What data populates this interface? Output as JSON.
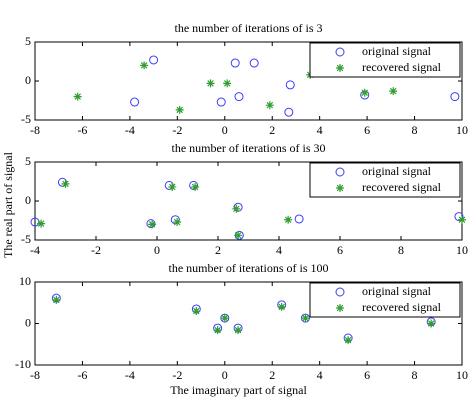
{
  "chart_data": [
    {
      "type": "scatter",
      "title": "the number of iterations of is 3",
      "xlim": [
        -8,
        10
      ],
      "xticks": [
        -8,
        -6,
        -4,
        -2,
        0,
        2,
        4,
        6,
        8,
        10
      ],
      "ylim": [
        -5,
        5
      ],
      "yticks": [
        -5,
        0,
        5
      ],
      "legend": "upper right",
      "series": [
        {
          "name": "original signal",
          "color": "#3b3bff",
          "marker": "circle",
          "x": [
            -3.8,
            -3.0,
            -0.15,
            0.44,
            0.6,
            1.24,
            2.7,
            2.76,
            5.9,
            9.7
          ],
          "values": [
            -2.7,
            2.7,
            -2.7,
            2.3,
            -2.0,
            2.3,
            -4.0,
            -0.5,
            -1.8,
            -2.0
          ]
        },
        {
          "name": "recovered signal",
          "color": "#2e9e2e",
          "marker": "star",
          "x": [
            -6.2,
            -3.4,
            -1.9,
            -0.6,
            0.1,
            1.9,
            3.6,
            5.9,
            7.1
          ],
          "values": [
            -2.0,
            2.0,
            -3.7,
            -0.3,
            -0.3,
            -3.1,
            0.8,
            -1.5,
            -1.3
          ]
        }
      ]
    },
    {
      "type": "scatter",
      "title": "the number of iterations of is 30",
      "xlim": [
        -4,
        10
      ],
      "xticks": [
        -4,
        -2,
        0,
        2,
        4,
        6,
        8,
        10
      ],
      "ylim": [
        -5,
        5
      ],
      "yticks": [
        -5,
        0,
        5
      ],
      "legend": "upper right",
      "series": [
        {
          "name": "original signal",
          "color": "#3b3bff",
          "marker": "circle",
          "x": [
            -4.0,
            -3.1,
            -0.2,
            0.4,
            0.6,
            1.2,
            2.66,
            2.7,
            4.66,
            9.9
          ],
          "values": [
            -2.7,
            2.4,
            -2.9,
            2.0,
            -2.4,
            2.0,
            -0.8,
            -4.4,
            -2.3,
            -2.0
          ]
        },
        {
          "name": "recovered signal",
          "color": "#2e9e2e",
          "marker": "star",
          "x": [
            -3.8,
            -3.0,
            -0.16,
            0.5,
            0.66,
            1.25,
            2.6,
            2.66,
            4.3,
            10.0
          ],
          "values": [
            -2.9,
            2.2,
            -3.0,
            1.8,
            -2.7,
            1.8,
            -1.0,
            -4.4,
            -2.4,
            -2.4
          ]
        }
      ]
    },
    {
      "type": "scatter",
      "title": "the number of iterations of is 100",
      "xlim": [
        -8,
        10
      ],
      "xticks": [
        -8,
        -6,
        -4,
        -2,
        0,
        2,
        4,
        6,
        8,
        10
      ],
      "ylim": [
        -10,
        10
      ],
      "yticks": [
        -10,
        0,
        10
      ],
      "legend": "upper right",
      "xlabel": "The imaginary part of signal",
      "ylabel": "The real part of signal",
      "series": [
        {
          "name": "original signal",
          "color": "#3b3bff",
          "marker": "circle",
          "x": [
            -7.1,
            -1.2,
            -0.3,
            0.0,
            0.56,
            2.4,
            3.4,
            5.2,
            8.7
          ],
          "values": [
            6.1,
            3.5,
            -1.1,
            1.3,
            -1.1,
            4.5,
            1.3,
            -3.5,
            0.4
          ]
        },
        {
          "name": "recovered signal",
          "color": "#2e9e2e",
          "marker": "star",
          "x": [
            -7.1,
            -1.2,
            -0.3,
            0.0,
            0.56,
            2.4,
            3.4,
            5.2,
            8.7
          ],
          "values": [
            5.7,
            3.0,
            -1.6,
            1.3,
            -1.6,
            4.0,
            1.3,
            -4.0,
            0.0
          ]
        }
      ]
    }
  ]
}
